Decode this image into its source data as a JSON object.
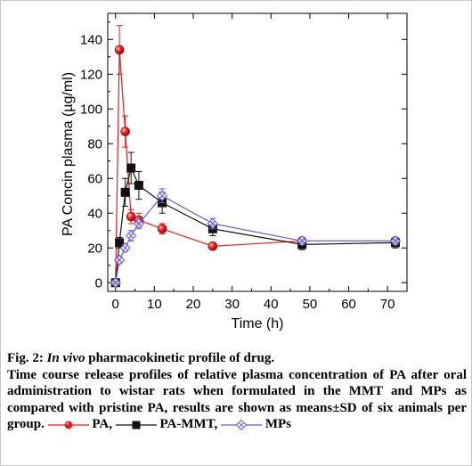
{
  "chart_data": {
    "type": "line",
    "xlabel": "Time (h)",
    "ylabel": "PA  Concin plasma (µg/ml)",
    "xlim": [
      -2,
      75
    ],
    "ylim": [
      -5,
      155
    ],
    "xticks": [
      0,
      10,
      20,
      30,
      40,
      50,
      60,
      70
    ],
    "yticks": [
      0,
      20,
      40,
      60,
      80,
      100,
      120,
      140
    ],
    "grid": false,
    "series": [
      {
        "name": "PA",
        "color": "#e02020",
        "marker": "sphere",
        "points": [
          {
            "x": 0,
            "y": 0,
            "err": 1
          },
          {
            "x": 1,
            "y": 134,
            "err": 14
          },
          {
            "x": 2.5,
            "y": 87,
            "err": 9
          },
          {
            "x": 4,
            "y": 38,
            "err": 4
          },
          {
            "x": 6,
            "y": 36,
            "err": 4
          },
          {
            "x": 12,
            "y": 31,
            "err": 3
          },
          {
            "x": 25,
            "y": 21,
            "err": 2
          },
          {
            "x": 48,
            "y": 24,
            "err": 2
          },
          {
            "x": 72,
            "y": 24,
            "err": 2
          }
        ]
      },
      {
        "name": "PA-MMT",
        "color": "#111111",
        "marker": "square",
        "points": [
          {
            "x": 0,
            "y": 0,
            "err": 1
          },
          {
            "x": 1,
            "y": 23,
            "err": 3
          },
          {
            "x": 2.5,
            "y": 52,
            "err": 8
          },
          {
            "x": 4,
            "y": 66,
            "err": 9
          },
          {
            "x": 6,
            "y": 56,
            "err": 8
          },
          {
            "x": 12,
            "y": 46,
            "err": 6
          },
          {
            "x": 25,
            "y": 31,
            "err": 4
          },
          {
            "x": 48,
            "y": 22,
            "err": 3
          },
          {
            "x": 72,
            "y": 23,
            "err": 3
          }
        ]
      },
      {
        "name": "MPs",
        "color": "#6a5acd",
        "marker": "crossed-diamond",
        "points": [
          {
            "x": 0,
            "y": 0,
            "err": 1
          },
          {
            "x": 1,
            "y": 13,
            "err": 2
          },
          {
            "x": 2.5,
            "y": 20,
            "err": 2
          },
          {
            "x": 4,
            "y": 27,
            "err": 3
          },
          {
            "x": 6,
            "y": 34,
            "err": 3
          },
          {
            "x": 12,
            "y": 50,
            "err": 4
          },
          {
            "x": 25,
            "y": 34,
            "err": 3
          },
          {
            "x": 48,
            "y": 24,
            "err": 2
          },
          {
            "x": 72,
            "y": 24,
            "err": 2
          }
        ]
      }
    ]
  },
  "caption": {
    "fig_label": "Fig. 2: ",
    "fig_title_italic": "In vivo",
    "fig_title_rest": " pharmacokinetic profile of drug.",
    "description": "Time course release profiles of relative plasma concentration of PA after oral administration to wistar rats when formulated in the MMT and MPs as compared with pristine PA, results are shown as means±SD of six animals per group.",
    "legend_pa": "PA,",
    "legend_pammt": "PA-MMT,",
    "legend_mps": "MPs"
  }
}
